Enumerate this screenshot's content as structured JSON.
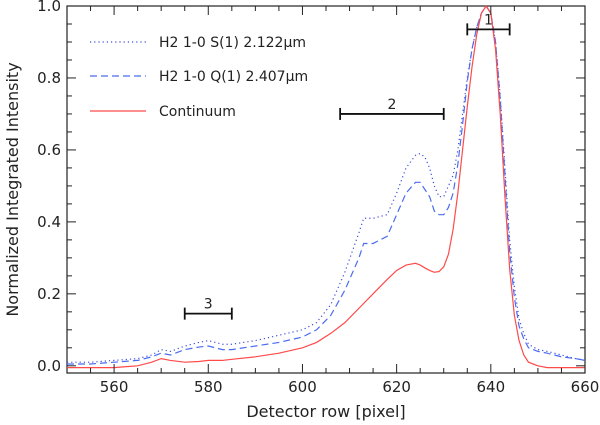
{
  "chart_data": {
    "type": "line",
    "xlabel": "Detector row [pixel]",
    "ylabel": "Normalized Integrated Intensity",
    "xlim": [
      550,
      660
    ],
    "ylim": [
      -0.02,
      1.0
    ],
    "xticks": [
      560,
      580,
      600,
      620,
      640,
      660
    ],
    "yticks": [
      0.0,
      0.2,
      0.4,
      0.6,
      0.8,
      1.0
    ],
    "ytick_labels": [
      "0.0",
      "0.2",
      "0.4",
      "0.6",
      "0.8",
      "1.0"
    ],
    "grid": false,
    "legend_placement": "top-left",
    "series": [
      {
        "name": "H2 1-0 S(1) 2.122μm",
        "style": "dotted",
        "color": "#3b4fd8",
        "x": [
          550,
          555,
          560,
          565,
          568,
          570,
          572,
          575,
          578,
          580,
          583,
          585,
          590,
          595,
          600,
          603,
          606,
          609,
          612,
          613,
          615,
          618,
          620,
          622,
          624,
          625,
          626,
          627,
          628,
          629,
          630,
          631,
          632,
          633,
          634,
          635,
          636,
          637,
          638,
          639,
          640,
          641,
          642,
          643,
          644,
          645,
          646,
          647,
          648,
          650,
          652,
          655,
          658,
          660
        ],
        "y": [
          0.01,
          0.01,
          0.015,
          0.02,
          0.03,
          0.045,
          0.04,
          0.055,
          0.065,
          0.07,
          0.06,
          0.06,
          0.07,
          0.085,
          0.1,
          0.12,
          0.17,
          0.26,
          0.37,
          0.41,
          0.41,
          0.42,
          0.48,
          0.55,
          0.585,
          0.59,
          0.58,
          0.55,
          0.5,
          0.47,
          0.47,
          0.5,
          0.53,
          0.6,
          0.7,
          0.8,
          0.88,
          0.94,
          0.98,
          1.0,
          0.98,
          0.9,
          0.75,
          0.55,
          0.35,
          0.22,
          0.13,
          0.09,
          0.06,
          0.045,
          0.04,
          0.03,
          0.02,
          0.015
        ]
      },
      {
        "name": "H2 1-0 Q(1) 2.407μm",
        "style": "dashed",
        "color": "#4a6cf0",
        "x": [
          550,
          555,
          560,
          565,
          568,
          570,
          572,
          575,
          578,
          580,
          583,
          585,
          590,
          595,
          600,
          603,
          606,
          609,
          612,
          613,
          615,
          618,
          620,
          622,
          624,
          625,
          626,
          627,
          628,
          629,
          630,
          631,
          632,
          633,
          634,
          635,
          636,
          637,
          638,
          639,
          640,
          641,
          642,
          643,
          644,
          645,
          646,
          647,
          648,
          650,
          652,
          655,
          658,
          660
        ],
        "y": [
          0.005,
          0.005,
          0.01,
          0.015,
          0.025,
          0.035,
          0.03,
          0.045,
          0.052,
          0.055,
          0.045,
          0.045,
          0.055,
          0.065,
          0.08,
          0.1,
          0.14,
          0.21,
          0.3,
          0.34,
          0.34,
          0.36,
          0.42,
          0.48,
          0.51,
          0.51,
          0.49,
          0.47,
          0.43,
          0.42,
          0.42,
          0.44,
          0.48,
          0.56,
          0.67,
          0.79,
          0.88,
          0.94,
          0.98,
          1.0,
          0.98,
          0.9,
          0.74,
          0.53,
          0.32,
          0.19,
          0.11,
          0.075,
          0.05,
          0.04,
          0.035,
          0.025,
          0.02,
          0.015
        ]
      },
      {
        "name": "Continuum",
        "style": "solid",
        "color": "#ff4a4a",
        "x": [
          550,
          555,
          560,
          565,
          568,
          570,
          572,
          575,
          578,
          580,
          583,
          585,
          590,
          595,
          600,
          603,
          606,
          609,
          612,
          615,
          618,
          620,
          622,
          624,
          625,
          626,
          627,
          628,
          629,
          630,
          631,
          632,
          633,
          634,
          635,
          636,
          637,
          638,
          639,
          640,
          641,
          642,
          643,
          644,
          645,
          646,
          647,
          648,
          650,
          652,
          655,
          658,
          660
        ],
        "y": [
          -0.005,
          -0.005,
          -0.005,
          0.0,
          0.01,
          0.02,
          0.015,
          0.01,
          0.012,
          0.015,
          0.015,
          0.018,
          0.025,
          0.035,
          0.05,
          0.065,
          0.09,
          0.12,
          0.16,
          0.2,
          0.24,
          0.265,
          0.28,
          0.285,
          0.28,
          0.272,
          0.265,
          0.26,
          0.262,
          0.275,
          0.31,
          0.38,
          0.48,
          0.6,
          0.72,
          0.83,
          0.92,
          0.98,
          1.0,
          0.98,
          0.88,
          0.7,
          0.47,
          0.27,
          0.14,
          0.07,
          0.03,
          0.01,
          0.0,
          -0.005,
          -0.005,
          -0.005,
          -0.005
        ]
      }
    ],
    "regions": [
      {
        "label": "1",
        "x_start": 635,
        "x_end": 644,
        "y": 0.935
      },
      {
        "label": "2",
        "x_start": 608,
        "x_end": 630,
        "y": 0.7
      },
      {
        "label": "3",
        "x_start": 575,
        "x_end": 585,
        "y": 0.145
      }
    ]
  }
}
